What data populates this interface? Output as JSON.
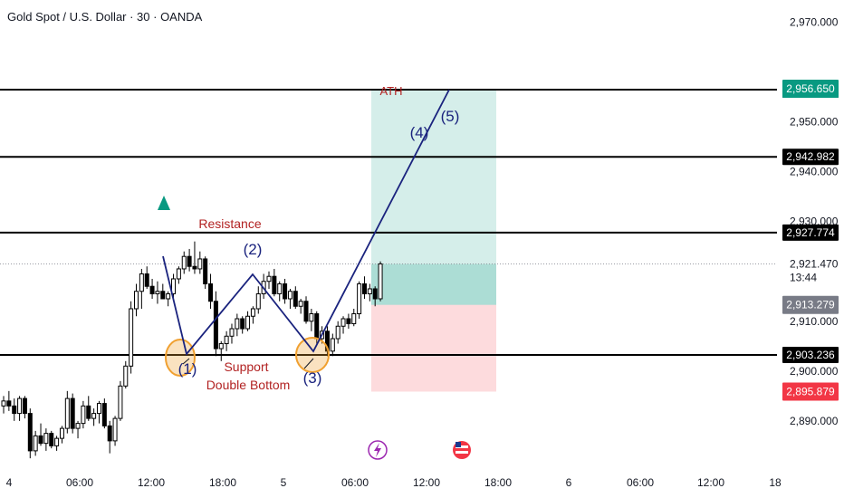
{
  "title": "Gold Spot / U.S. Dollar · 30 · OANDA",
  "chart_data": {
    "type": "candlestick",
    "symbol": "Gold Spot / U.S. Dollar",
    "interval": "30",
    "source": "OANDA",
    "y_range": [
      2883,
      2975
    ],
    "y_ticks": [
      "2,970.000",
      "2,950.000",
      "2,940.000",
      "2,930.000",
      "2,910.000",
      "2,900.000",
      "2,890.000"
    ],
    "y_tick_values": [
      2970,
      2950,
      2940,
      2930,
      2910,
      2900,
      2890
    ],
    "x_ticks": [
      "4",
      "06:00",
      "12:00",
      "18:00",
      "5",
      "06:00",
      "12:00",
      "18:00",
      "6",
      "06:00",
      "12:00",
      "18"
    ],
    "price_levels": [
      {
        "label": "2,956.461",
        "value": 2956.461,
        "style": "line",
        "color": "#000000"
      },
      {
        "label": "2,942.982",
        "value": 2942.982,
        "style": "line",
        "color": "#000000"
      },
      {
        "label": "2,927.774",
        "value": 2927.774,
        "style": "line",
        "color": "#000000"
      },
      {
        "label": "2,903.236",
        "value": 2903.236,
        "style": "line",
        "color": "#000000"
      }
    ],
    "price_tags": [
      {
        "label": "2,956.650",
        "value": 2956.65,
        "color": "#089981"
      },
      {
        "label": "2,913.279",
        "value": 2913.279,
        "color": "#787b86"
      },
      {
        "label": "2,895.879",
        "value": 2895.879,
        "color": "#f23645"
      }
    ],
    "current_price": {
      "label": "2,921.470",
      "value": 2921.47,
      "countdown": "13:44"
    },
    "target_zone": {
      "from": 2913.279,
      "to": 2956.65,
      "color": "#089981"
    },
    "stop_zone": {
      "from": 2895.879,
      "to": 2913.279,
      "color": "#f23645"
    },
    "candles": [
      [
        2893.0,
        2895.0,
        2891.5,
        2894.0
      ],
      [
        2894.0,
        2896.0,
        2892.0,
        2893.0
      ],
      [
        2893.0,
        2894.5,
        2890.0,
        2891.5
      ],
      [
        2891.5,
        2895.0,
        2890.0,
        2894.5
      ],
      [
        2894.5,
        2895.0,
        2890.5,
        2891.5
      ],
      [
        2891.5,
        2892.5,
        2882.5,
        2884.0
      ],
      [
        2884.0,
        2888.0,
        2883.0,
        2887.0
      ],
      [
        2887.0,
        2889.5,
        2885.0,
        2885.5
      ],
      [
        2885.5,
        2888.5,
        2884.0,
        2887.5
      ],
      [
        2887.5,
        2888.0,
        2884.5,
        2885.0
      ],
      [
        2885.0,
        2887.0,
        2884.0,
        2886.5
      ],
      [
        2886.5,
        2889.0,
        2885.5,
        2888.5
      ],
      [
        2888.5,
        2896.0,
        2887.5,
        2894.5
      ],
      [
        2894.5,
        2895.5,
        2887.5,
        2888.5
      ],
      [
        2888.5,
        2890.0,
        2886.5,
        2889.5
      ],
      [
        2889.5,
        2894.0,
        2888.5,
        2893.0
      ],
      [
        2893.0,
        2895.0,
        2890.0,
        2890.5
      ],
      [
        2890.5,
        2892.5,
        2889.0,
        2891.5
      ],
      [
        2891.5,
        2894.0,
        2889.5,
        2893.5
      ],
      [
        2893.5,
        2894.5,
        2888.5,
        2889.0
      ],
      [
        2889.0,
        2890.0,
        2883.5,
        2886.0
      ],
      [
        2886.0,
        2891.0,
        2885.0,
        2890.5
      ],
      [
        2890.5,
        2898.0,
        2890.0,
        2897.0
      ],
      [
        2897.0,
        2902.0,
        2896.5,
        2901.0
      ],
      [
        2901.0,
        2914.0,
        2899.5,
        2912.5
      ],
      [
        2912.5,
        2917.5,
        2911.0,
        2916.0
      ],
      [
        2916.0,
        2920.5,
        2912.5,
        2919.5
      ],
      [
        2919.5,
        2921.0,
        2916.5,
        2917.0
      ],
      [
        2917.0,
        2918.5,
        2914.5,
        2915.5
      ],
      [
        2915.5,
        2918.0,
        2913.5,
        2916.0
      ],
      [
        2916.0,
        2917.5,
        2914.5,
        2914.5
      ],
      [
        2914.5,
        2916.0,
        2913.0,
        2915.5
      ],
      [
        2915.5,
        2919.5,
        2914.5,
        2918.5
      ],
      [
        2918.5,
        2921.0,
        2917.5,
        2920.5
      ],
      [
        2920.5,
        2924.0,
        2919.5,
        2923.0
      ],
      [
        2923.0,
        2924.5,
        2920.0,
        2921.0
      ],
      [
        2921.0,
        2926.0,
        2919.5,
        2920.5
      ],
      [
        2920.5,
        2924.0,
        2919.5,
        2922.5
      ],
      [
        2922.5,
        2923.0,
        2916.5,
        2917.5
      ],
      [
        2917.5,
        2919.5,
        2912.5,
        2914.0
      ],
      [
        2914.0,
        2916.0,
        2903.0,
        2904.5
      ],
      [
        2904.5,
        2906.0,
        2902.0,
        2905.5
      ],
      [
        2905.5,
        2908.0,
        2904.0,
        2907.0
      ],
      [
        2907.0,
        2909.5,
        2905.5,
        2908.5
      ],
      [
        2908.5,
        2911.5,
        2907.0,
        2910.5
      ],
      [
        2910.5,
        2911.0,
        2907.5,
        2908.5
      ],
      [
        2908.5,
        2912.0,
        2908.0,
        2911.0
      ],
      [
        2911.0,
        2913.0,
        2909.5,
        2912.5
      ],
      [
        2912.5,
        2917.0,
        2911.5,
        2915.5
      ],
      [
        2915.5,
        2919.5,
        2914.5,
        2918.0
      ],
      [
        2918.0,
        2920.0,
        2916.5,
        2919.0
      ],
      [
        2919.0,
        2920.5,
        2915.0,
        2915.5
      ],
      [
        2915.5,
        2918.0,
        2914.0,
        2917.5
      ],
      [
        2917.5,
        2918.5,
        2913.5,
        2914.5
      ],
      [
        2914.5,
        2916.5,
        2912.5,
        2916.0
      ],
      [
        2916.0,
        2917.0,
        2912.5,
        2913.0
      ],
      [
        2913.0,
        2914.5,
        2911.5,
        2914.0
      ],
      [
        2914.0,
        2915.0,
        2909.5,
        2910.0
      ],
      [
        2910.0,
        2912.5,
        2908.0,
        2911.5
      ],
      [
        2911.5,
        2912.0,
        2905.5,
        2906.5
      ],
      [
        2906.5,
        2909.0,
        2905.5,
        2908.0
      ],
      [
        2908.0,
        2909.0,
        2903.0,
        2904.0
      ],
      [
        2904.0,
        2907.5,
        2903.0,
        2906.5
      ],
      [
        2906.5,
        2910.0,
        2905.5,
        2909.0
      ],
      [
        2909.0,
        2911.0,
        2907.5,
        2910.5
      ],
      [
        2910.5,
        2911.5,
        2908.5,
        2909.5
      ],
      [
        2909.5,
        2912.5,
        2909.0,
        2911.5
      ],
      [
        2911.5,
        2918.0,
        2910.5,
        2917.5
      ],
      [
        2917.5,
        2919.0,
        2914.5,
        2915.5
      ],
      [
        2915.5,
        2917.5,
        2914.0,
        2916.5
      ],
      [
        2916.5,
        2917.0,
        2913.0,
        2914.5
      ],
      [
        2914.5,
        2922.0,
        2914.0,
        2921.5
      ]
    ],
    "annotations": [
      {
        "text": "ATH",
        "color": "#b22222"
      },
      {
        "text": "Resistance",
        "color": "#b22222"
      },
      {
        "text": "Support",
        "color": "#b22222"
      },
      {
        "text": "Double Bottom",
        "color": "#b22222"
      },
      {
        "text": "(1)",
        "color": "#1a237e"
      },
      {
        "text": "(2)",
        "color": "#1a237e"
      },
      {
        "text": "(3)",
        "color": "#1a237e"
      },
      {
        "text": "(4)",
        "color": "#1a237e"
      },
      {
        "text": "(5)",
        "color": "#1a237e"
      }
    ],
    "colors": {
      "up": "#089981",
      "down": "#f23645",
      "candle_body": "#000000",
      "wave_line": "#1a237e",
      "highlight_circle": "#f0a030",
      "signal_arrow": "#089981"
    }
  }
}
